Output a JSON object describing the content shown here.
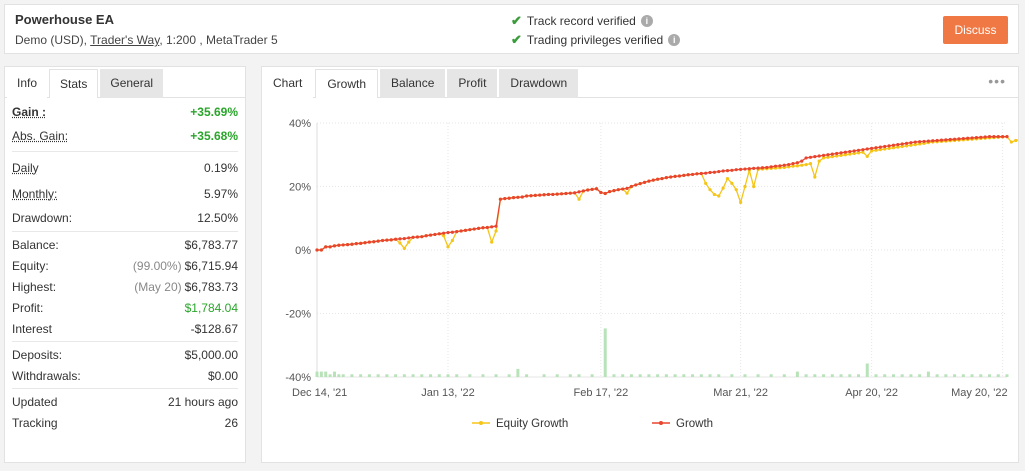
{
  "header": {
    "title": "Powerhouse EA",
    "account_type": "Demo (USD),",
    "broker": "Trader's Way",
    "details": ", 1:200 , MetaTrader 5",
    "verified_1": "Track record verified",
    "verified_2": "Trading privileges verified",
    "discuss_label": "Discuss"
  },
  "left_tabs": [
    "Info",
    "Stats",
    "General"
  ],
  "stats": {
    "gain_label": "Gain :",
    "gain": "+35.69%",
    "abs_gain_label": "Abs. Gain:",
    "abs_gain": "+35.68%",
    "daily_label": "Daily",
    "daily": "0.19%",
    "monthly_label": "Monthly:",
    "monthly": "5.97%",
    "drawdown_label": "Drawdown:",
    "drawdown": "12.50%",
    "balance_label": "Balance:",
    "balance": "$6,783.77",
    "equity_label": "Equity:",
    "equity_pct": "(99.00%)",
    "equity": "$6,715.94",
    "highest_label": "Highest:",
    "highest_date": "(May 20)",
    "highest": "$6,783.73",
    "profit_label": "Profit:",
    "profit": "$1,784.04",
    "interest_label": "Interest",
    "interest": "-$128.67",
    "deposits_label": "Deposits:",
    "deposits": "$5,000.00",
    "withdrawals_label": "Withdrawals:",
    "withdrawals": "$0.00",
    "updated_label": "Updated",
    "updated": "21 hours ago",
    "tracking_label": "Tracking",
    "tracking": "26"
  },
  "chart_tabs": [
    "Chart",
    "Growth",
    "Balance",
    "Profit",
    "Drawdown"
  ],
  "colors": {
    "growth": "#e8452e",
    "equity": "#f5c518",
    "bars": "#b8e2b8",
    "accent": "#f07844",
    "positive": "#2aa52a"
  },
  "chart_data": {
    "type": "line",
    "ylim": [
      -40,
      40
    ],
    "y_ticks": [
      "40%",
      "20%",
      "0%",
      "-20%",
      "-40%"
    ],
    "x_ticks": [
      "Dec 14, '21",
      "Jan 13, '22",
      "Feb 17, '22",
      "Mar 21, '22",
      "Apr 20, '22",
      "May 20, '22"
    ],
    "x_tick_index": [
      0,
      30,
      65,
      97,
      127,
      157
    ],
    "legend": [
      "Equity Growth",
      "Growth"
    ],
    "growth": [
      0,
      0,
      1,
      1,
      1.3,
      1.5,
      1.6,
      1.7,
      1.8,
      2,
      2.1,
      2.3,
      2.5,
      2.6,
      2.8,
      3,
      3.1,
      3.2,
      3.4,
      3.5,
      3.6,
      3.8,
      4,
      4.1,
      4.2,
      4.5,
      4.7,
      4.9,
      5.1,
      5.3,
      5.5,
      5.6,
      5.8,
      6,
      6.2,
      6.4,
      6.6,
      6.8,
      7,
      7.1,
      7.3,
      7.5,
      16,
      16.2,
      16.3,
      16.5,
      16.6,
      16.7,
      17,
      17.1,
      17.2,
      17.3,
      17.4,
      17.5,
      17.5,
      17.6,
      17.7,
      17.8,
      17.9,
      18,
      18.3,
      18.6,
      18.9,
      19.1,
      19.3,
      18.1,
      17.8,
      18.4,
      18.7,
      19,
      19.2,
      19.4,
      20,
      20.5,
      20.9,
      21.3,
      21.7,
      22,
      22.3,
      22.5,
      22.8,
      23,
      23.2,
      23.3,
      23.5,
      23.7,
      23.8,
      24,
      24.1,
      24.2,
      24.4,
      24.5,
      24.7,
      24.9,
      25,
      25.1,
      25.3,
      25.4,
      25.5,
      25.6,
      25.7,
      25.8,
      25.9,
      26,
      26.2,
      26.4,
      26.5,
      26.7,
      26.9,
      27.2,
      27.5,
      28,
      29,
      29.2,
      29.4,
      29.6,
      29.8,
      30,
      30.2,
      30.4,
      30.6,
      30.8,
      31,
      31.2,
      31.4,
      31.6,
      31.8,
      32,
      32.2,
      32.4,
      32.6,
      32.8,
      33,
      33.2,
      33.4,
      33.6,
      33.8,
      34,
      34.1,
      34.2,
      34.3,
      34.4,
      34.5,
      34.6,
      34.7,
      34.8,
      34.9,
      35,
      35.1,
      35.2,
      35.3,
      35.4,
      35.5,
      35.6,
      35.7,
      35.7,
      35.7,
      35.7,
      35.7
    ],
    "equity": [
      0,
      0,
      1,
      1,
      1.3,
      1.5,
      1.6,
      1.7,
      1.8,
      2,
      2.1,
      2.3,
      2.5,
      2.6,
      2.8,
      3,
      3.1,
      3.2,
      3.4,
      2.2,
      0.5,
      2.5,
      4,
      4.1,
      4.2,
      4.5,
      4.7,
      4.9,
      5.1,
      4.5,
      1,
      3,
      5.8,
      6,
      6.2,
      6.4,
      6.6,
      6.8,
      7,
      7.1,
      2.5,
      6,
      16,
      16.2,
      16.3,
      16.5,
      16.6,
      16.7,
      17,
      17.1,
      17.2,
      17.3,
      17.4,
      17.5,
      17.5,
      17.6,
      17.7,
      17.8,
      17.9,
      18,
      16,
      18.6,
      18.9,
      19.1,
      19.3,
      18.1,
      17.8,
      18.4,
      18.7,
      19,
      19.2,
      17.9,
      20,
      20.5,
      20.9,
      21.3,
      21.7,
      22,
      22.3,
      22.5,
      22.8,
      23,
      23.2,
      23.3,
      23.5,
      23.7,
      23.8,
      24,
      24.1,
      21,
      19,
      17.5,
      17,
      19.5,
      22.5,
      21,
      19,
      15,
      20,
      25.1,
      20,
      25.4,
      25.5,
      25.6,
      25.7,
      25.8,
      25.9,
      26,
      26.2,
      26.4,
      26.5,
      26.7,
      26.9,
      27.2,
      23,
      28,
      29,
      29.2,
      29.4,
      29.6,
      29.8,
      30,
      30.2,
      30.4,
      30.6,
      30.8,
      29.5,
      31.2,
      31.4,
      31.6,
      31.8,
      32,
      32.2,
      32.4,
      32.6,
      32.8,
      33,
      33.2,
      33.4,
      33.6,
      33.8,
      34,
      34.1,
      34.2,
      34.3,
      34.4,
      34.5,
      34.6,
      34.7,
      34.8,
      34.9,
      35,
      35.1,
      35.2,
      35.3,
      35.4,
      35.5,
      35.6,
      35.7,
      34,
      34.5,
      34.8
    ],
    "volume_bars": [
      [
        0,
        2
      ],
      [
        1,
        2
      ],
      [
        2,
        2
      ],
      [
        3,
        1
      ],
      [
        4,
        2
      ],
      [
        5,
        1
      ],
      [
        6,
        1
      ],
      [
        8,
        1
      ],
      [
        10,
        1
      ],
      [
        12,
        1
      ],
      [
        14,
        1
      ],
      [
        16,
        1
      ],
      [
        18,
        1
      ],
      [
        20,
        1
      ],
      [
        22,
        1
      ],
      [
        24,
        1
      ],
      [
        26,
        1
      ],
      [
        28,
        1
      ],
      [
        30,
        1
      ],
      [
        32,
        1
      ],
      [
        35,
        1
      ],
      [
        38,
        1
      ],
      [
        41,
        1
      ],
      [
        44,
        1
      ],
      [
        46,
        3
      ],
      [
        48,
        1
      ],
      [
        52,
        1
      ],
      [
        55,
        1
      ],
      [
        58,
        1
      ],
      [
        60,
        1
      ],
      [
        63,
        1
      ],
      [
        66,
        18
      ],
      [
        68,
        1
      ],
      [
        70,
        1
      ],
      [
        72,
        1
      ],
      [
        74,
        1
      ],
      [
        76,
        1
      ],
      [
        78,
        1
      ],
      [
        80,
        1
      ],
      [
        82,
        1
      ],
      [
        84,
        1
      ],
      [
        86,
        1
      ],
      [
        88,
        1
      ],
      [
        90,
        1
      ],
      [
        92,
        1
      ],
      [
        95,
        1
      ],
      [
        98,
        1
      ],
      [
        101,
        1
      ],
      [
        104,
        1
      ],
      [
        107,
        1
      ],
      [
        110,
        2
      ],
      [
        112,
        1
      ],
      [
        114,
        1
      ],
      [
        116,
        1
      ],
      [
        118,
        1
      ],
      [
        120,
        1
      ],
      [
        122,
        1
      ],
      [
        124,
        1
      ],
      [
        126,
        5
      ],
      [
        128,
        1
      ],
      [
        130,
        1
      ],
      [
        132,
        1
      ],
      [
        134,
        1
      ],
      [
        136,
        1
      ],
      [
        138,
        1
      ],
      [
        140,
        2
      ],
      [
        142,
        1
      ],
      [
        144,
        1
      ],
      [
        146,
        1
      ],
      [
        148,
        1
      ],
      [
        150,
        1
      ],
      [
        152,
        1
      ],
      [
        154,
        1
      ],
      [
        156,
        1
      ],
      [
        158,
        1
      ]
    ]
  }
}
